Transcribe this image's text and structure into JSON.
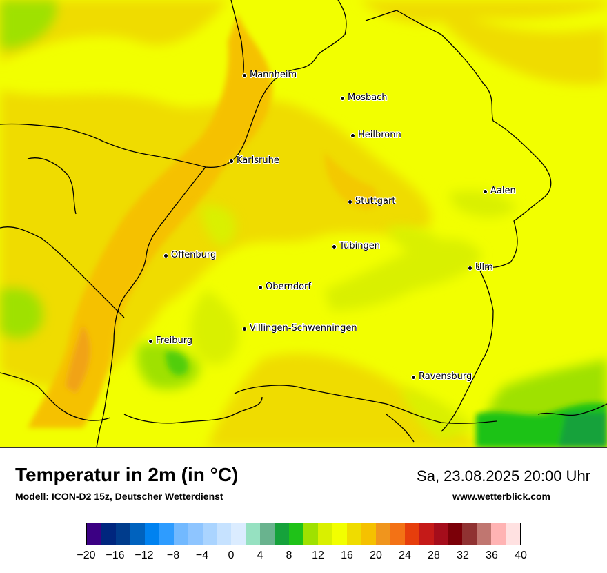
{
  "title": "Temperatur in 2m (in °C)",
  "model": "Modell: ICON-D2 15z, Deutscher Wetterdienst",
  "datetime": "Sa, 23.08.2025 20:00 Uhr",
  "website": "www.wetterblick.com",
  "cities": [
    {
      "name": "Mannheim"
    },
    {
      "name": "Mosbach"
    },
    {
      "name": "Heilbronn"
    },
    {
      "name": "Karlsruhe"
    },
    {
      "name": "Aalen"
    },
    {
      "name": "Stuttgart"
    },
    {
      "name": "Tübingen"
    },
    {
      "name": "Offenburg"
    },
    {
      "name": "Ulm"
    },
    {
      "name": "Oberndorf"
    },
    {
      "name": "Villingen-Schwenningen"
    },
    {
      "name": "Freiburg"
    },
    {
      "name": "Ravensburg"
    }
  ],
  "legend": {
    "colors": [
      "#3b0083",
      "#00267e",
      "#003c8c",
      "#0062be",
      "#0082f0",
      "#2e9cff",
      "#72b9ff",
      "#8ec5ff",
      "#aad4ff",
      "#c6e2ff",
      "#dbecff",
      "#96e1c1",
      "#69b38e",
      "#15a23b",
      "#1fc218",
      "#9fe100",
      "#d9f000",
      "#f2ff00",
      "#efdc00",
      "#f5c100",
      "#f0951d",
      "#f37215",
      "#e63e0c",
      "#c51a18",
      "#a50d1b",
      "#7b0008",
      "#903232",
      "#c07670",
      "#ffb3b3",
      "#ffe1e1"
    ],
    "ticks": [
      "−20",
      "−16",
      "−12",
      "−8",
      "−4",
      "0",
      "4",
      "8",
      "12",
      "16",
      "20",
      "24",
      "28",
      "32",
      "36",
      "40"
    ]
  }
}
